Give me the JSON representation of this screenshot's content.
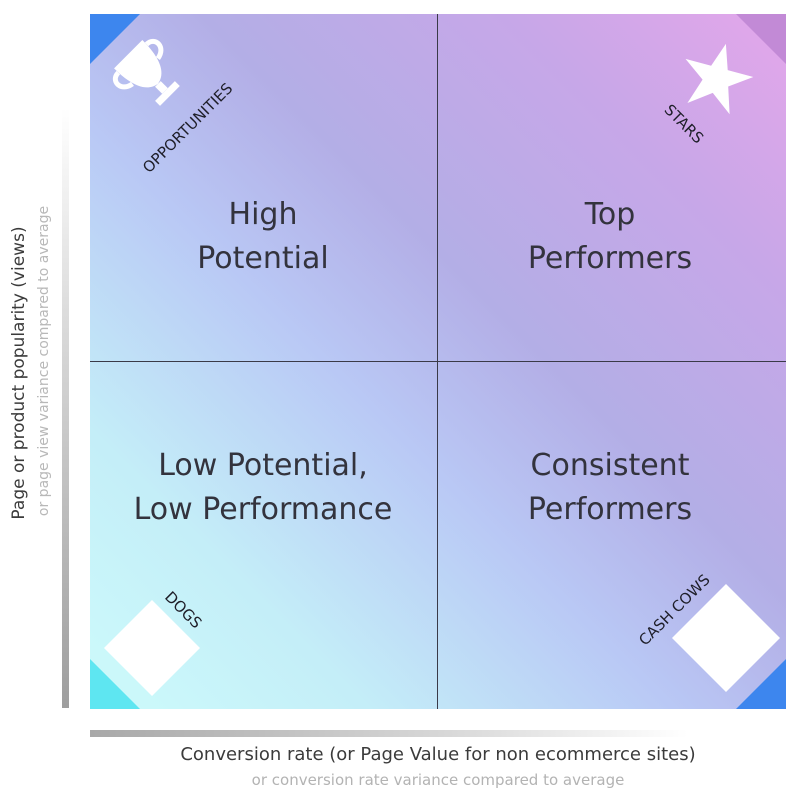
{
  "quadrants": {
    "top_left": {
      "title": "High\nPotential",
      "corner_label": "OPPORTUNITIES",
      "icon": "trophy-icon"
    },
    "top_right": {
      "title": "Top\nPerformers",
      "corner_label": "STARS",
      "icon": "star-icon"
    },
    "bottom_left": {
      "title": "Low Potential,\nLow Performance",
      "corner_label": "DOGS",
      "icon": "dog-icon"
    },
    "bottom_right": {
      "title": "Consistent\nPerformers",
      "corner_label": "CASH COWS",
      "icon": "cow-icon"
    }
  },
  "x_axis": {
    "title": "Conversion rate (or Page Value for non ecommerce sites)",
    "subtitle": "or conversion rate variance compared to average"
  },
  "y_axis": {
    "title": "Page or product popularity (views)",
    "subtitle": "or page view variance compared to average"
  },
  "colors": {
    "gradient_low": "#cdfbfb",
    "gradient_mid": "#b3aee6",
    "gradient_high": "#e4a7ea",
    "corner_blue": "#3d86ee",
    "corner_purple": "#c28ad6",
    "corner_cyan": "#5ee6f1",
    "divider": "#3a3a48"
  }
}
